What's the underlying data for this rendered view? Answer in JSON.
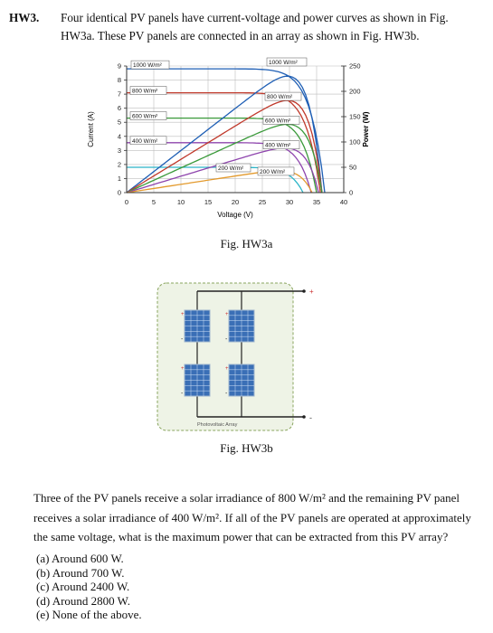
{
  "problem": {
    "label": "HW3.",
    "intro_line1": "Four identical PV panels have current-voltage and power curves as shown in Fig.",
    "intro_line2": "HW3a. These PV panels are connected in an array as shown in Fig. HW3b."
  },
  "figure_a": {
    "caption": "Fig. HW3a",
    "chart_data": {
      "type": "line",
      "xlabel": "Voltage (V)",
      "ylabel_left": "Current (A)",
      "ylabel_right": "Power (W)",
      "xlim": [
        0,
        40
      ],
      "ylim_left": [
        0,
        9
      ],
      "ylim_right": [
        0,
        250
      ],
      "x_ticks": [
        "0",
        "5",
        "10",
        "15",
        "20",
        "25",
        "30",
        "35",
        "40"
      ],
      "y_ticks_left": [
        "0",
        "1",
        "2",
        "3",
        "4",
        "5",
        "6",
        "7",
        "8",
        "9"
      ],
      "y_ticks_right": [
        "0",
        "50",
        "100",
        "150",
        "200",
        "250"
      ],
      "grid": true,
      "iv_series": [
        {
          "name": "1000 W/m²",
          "color": "#1f5fb5",
          "isc": 8.8,
          "voc": 36.5
        },
        {
          "name": "800 W/m²",
          "color": "#c0392b",
          "isc": 7.1,
          "voc": 35.7
        },
        {
          "name": "600 W/m²",
          "color": "#3a9a3a",
          "isc": 5.3,
          "voc": 35.0
        },
        {
          "name": "400 W/m²",
          "color": "#8e44ad",
          "isc": 3.55,
          "voc": 34.0
        },
        {
          "name": "200 W/m²",
          "color": "#2bb5c8",
          "isc": 1.8,
          "voc": 32.5
        }
      ],
      "power_series": [
        {
          "name": "1000 W/m²",
          "color": "#1f5fb5",
          "pmax": 230,
          "vmp": 29.5
        },
        {
          "name": "800 W/m²",
          "color": "#c0392b",
          "pmax": 182,
          "vmp": 29.5
        },
        {
          "name": "600 W/m²",
          "color": "#3a9a3a",
          "pmax": 135,
          "vmp": 29.5
        },
        {
          "name": "400 W/m²",
          "color": "#8e44ad",
          "pmax": 88,
          "vmp": 29
        },
        {
          "name": "200 W/m²",
          "color": "#e39a2d",
          "pmax": 43,
          "vmp": 28
        }
      ],
      "annotations": {
        "iv_1000": "1000 W/m²",
        "iv_800": "800 W/m²",
        "iv_600": "600 W/m²",
        "iv_400": "400 W/m²",
        "iv_200": "200 W/m²",
        "p_1000": "1000 W/m²",
        "p_800": "800 W/m²",
        "p_600": "600 W/m²",
        "p_400": "400 W/m²",
        "p_200": "200 W/m²"
      }
    }
  },
  "figure_b": {
    "caption": "Fig. HW3b",
    "array_label": "Photovoltaic Array",
    "plus": "+",
    "minus": "-"
  },
  "question": {
    "line1": "Three of the PV panels receive a solar irradiance of 800 W/m² and the remaining PV panel",
    "line2": "receives a solar irradiance of 400 W/m². If all of the PV panels are operated at approximately",
    "line3": "the same voltage, what is the maximum power that can be extracted from this PV array?"
  },
  "options": [
    "(a) Around 600 W.",
    "(b) Around 700 W.",
    "(c) Around 2400 W.",
    "(d) Around 2800 W.",
    "(e) None of the above."
  ]
}
